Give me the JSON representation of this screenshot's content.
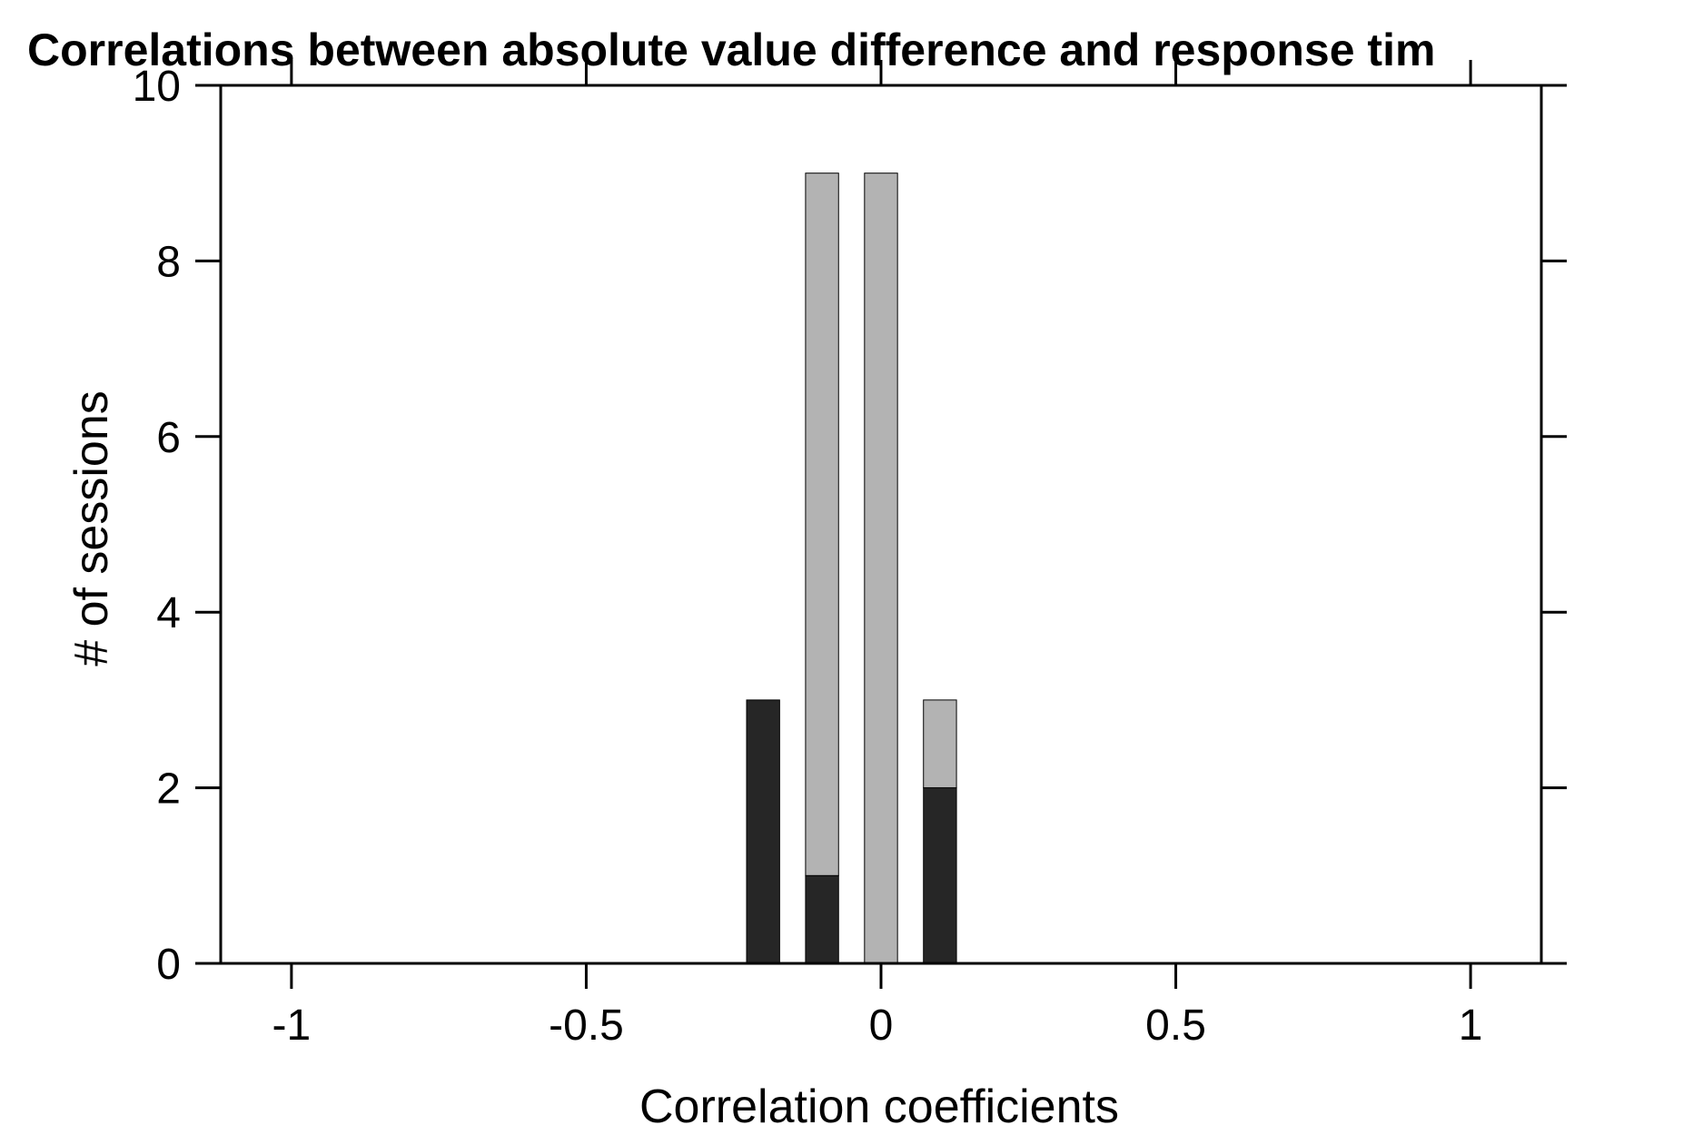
{
  "chart_data": {
    "type": "bar",
    "title": "Correlations between absolute value difference and response tim",
    "xlabel": "Correlation coefficients",
    "ylabel": "# of sessions",
    "xlim": [
      -1.12,
      1.12
    ],
    "ylim": [
      0,
      10
    ],
    "xticks": [
      "-1",
      "-0.5",
      "0",
      "0.5",
      "1"
    ],
    "xtick_values": [
      -1,
      -0.5,
      0,
      0.5,
      1
    ],
    "yticks": [
      "0",
      "2",
      "4",
      "6",
      "8",
      "10"
    ],
    "ytick_values": [
      0,
      2,
      4,
      6,
      8,
      10
    ],
    "bin_width": 0.1,
    "stacked": true,
    "bin_centers": [
      -0.2,
      -0.1,
      0.0,
      0.1
    ],
    "series": [
      {
        "color": "#262626",
        "values": [
          3,
          1,
          0,
          2
        ]
      },
      {
        "color": "#b3b3b3",
        "values": [
          0,
          8,
          9,
          1
        ]
      }
    ],
    "grid": false,
    "box": true
  }
}
